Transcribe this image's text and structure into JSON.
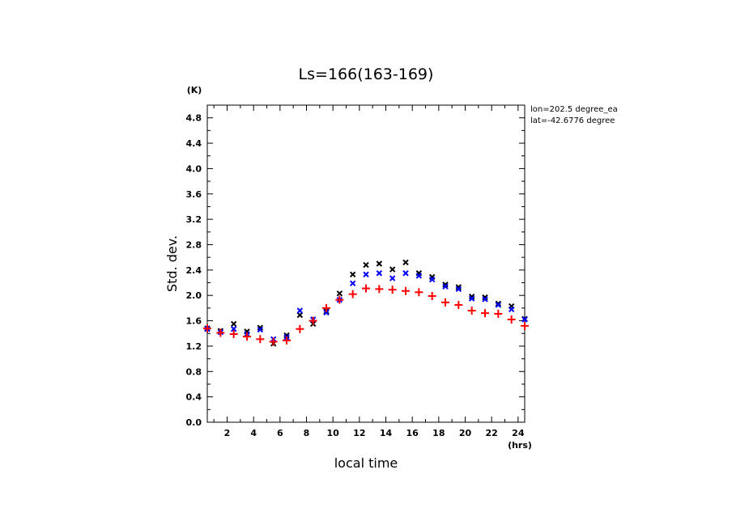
{
  "chart_data": {
    "type": "scatter",
    "title": "Ls=166(163-169)",
    "xlabel": "local time",
    "ylabel": "Std. dev.",
    "x_unit": "(hrs)",
    "y_unit": "(K)",
    "annotations": [
      "lon=202.5 degree_ea",
      "lat=-42.6776 degree"
    ],
    "xlim": [
      0.5,
      24.5
    ],
    "ylim": [
      0.0,
      5.0
    ],
    "x_ticks": [
      2,
      4,
      6,
      8,
      10,
      12,
      14,
      16,
      18,
      20,
      22,
      24
    ],
    "y_ticks": [
      0.0,
      0.4,
      0.8,
      1.2,
      1.6,
      2.0,
      2.4,
      2.8,
      3.2,
      3.6,
      4.0,
      4.4,
      4.8
    ],
    "x_tick_labels": [
      "2",
      "4",
      "6",
      "8",
      "10",
      "12",
      "14",
      "16",
      "18",
      "20",
      "22",
      "24"
    ],
    "y_tick_labels": [
      "0.0",
      "0.4",
      "0.8",
      "1.2",
      "1.6",
      "2.0",
      "2.4",
      "2.8",
      "3.2",
      "3.6",
      "4.0",
      "4.4",
      "4.8"
    ],
    "grid": false,
    "series": [
      {
        "marker": "x",
        "color": "#000000",
        "x": [
          0.5,
          1.5,
          2.5,
          3.5,
          4.5,
          5.5,
          6.5,
          7.5,
          8.5,
          9.5,
          10.5,
          11.5,
          12.5,
          13.5,
          14.5,
          15.5,
          16.5,
          17.5,
          18.5,
          19.5,
          20.5,
          21.5,
          22.5,
          23.5,
          24.5
        ],
        "values": [
          1.48,
          1.44,
          1.55,
          1.43,
          1.49,
          1.24,
          1.37,
          1.69,
          1.55,
          1.75,
          2.03,
          2.33,
          2.48,
          2.5,
          2.41,
          2.52,
          2.35,
          2.29,
          2.17,
          2.13,
          1.98,
          1.97,
          1.87,
          1.83,
          1.63
        ]
      },
      {
        "marker": "x",
        "color": "#0000ff",
        "x": [
          0.5,
          1.5,
          2.5,
          3.5,
          4.5,
          5.5,
          6.5,
          7.5,
          8.5,
          9.5,
          10.5,
          11.5,
          12.5,
          13.5,
          14.5,
          15.5,
          16.5,
          17.5,
          18.5,
          19.5,
          20.5,
          21.5,
          22.5,
          23.5,
          24.5
        ],
        "values": [
          1.47,
          1.42,
          1.47,
          1.39,
          1.46,
          1.31,
          1.34,
          1.76,
          1.62,
          1.73,
          1.93,
          2.19,
          2.33,
          2.35,
          2.27,
          2.35,
          2.31,
          2.25,
          2.14,
          2.1,
          1.95,
          1.94,
          1.85,
          1.78,
          1.62
        ]
      },
      {
        "marker": "+",
        "color": "#ff0000",
        "x": [
          0.5,
          1.5,
          2.5,
          3.5,
          4.5,
          5.5,
          6.5,
          7.5,
          8.5,
          9.5,
          10.5,
          11.5,
          12.5,
          13.5,
          14.5,
          15.5,
          16.5,
          17.5,
          18.5,
          19.5,
          20.5,
          21.5,
          22.5,
          23.5,
          24.5
        ],
        "values": [
          1.48,
          1.41,
          1.39,
          1.35,
          1.31,
          1.27,
          1.29,
          1.47,
          1.6,
          1.8,
          1.93,
          2.02,
          2.11,
          2.1,
          2.09,
          2.07,
          2.05,
          1.99,
          1.89,
          1.85,
          1.76,
          1.72,
          1.71,
          1.62,
          1.52
        ]
      }
    ]
  }
}
